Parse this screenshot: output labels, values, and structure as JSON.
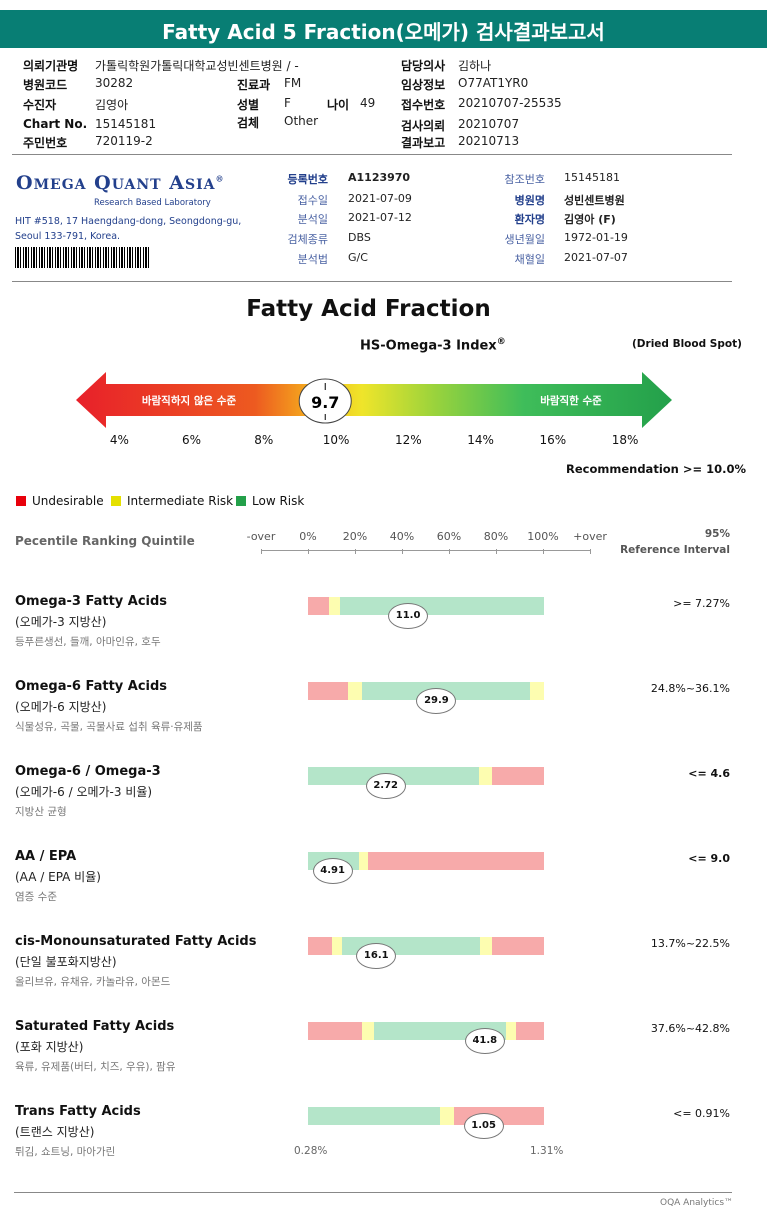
{
  "report": {
    "title": "Fatty Acid 5 Fraction(오메가) 검사결과보고서"
  },
  "header": {
    "left": [
      {
        "k": "의뢰기관명",
        "v": "가톨릭학원가톨릭대학교성빈센트병원 / -"
      },
      {
        "k": "병원코드",
        "v": "30282"
      },
      {
        "k": "수진자",
        "v": "김영아"
      },
      {
        "k": "Chart No.",
        "v": "15145181"
      },
      {
        "k": "주민번호",
        "v": "720119-2"
      }
    ],
    "mid": [
      {
        "k": "진료과",
        "v": "FM"
      },
      {
        "k": "성별",
        "v": "F"
      },
      {
        "k": "검체",
        "v": "Other"
      }
    ],
    "age": {
      "k": "나이",
      "v": "49"
    },
    "right": [
      {
        "k": "담당의사",
        "v": "김하나"
      },
      {
        "k": "임상정보",
        "v": "O77AT1YR0"
      },
      {
        "k": "접수번호",
        "v": "20210707-25535"
      },
      {
        "k": "검사의뢰",
        "v": "20210707"
      },
      {
        "k": "결과보고",
        "v": "20210713"
      }
    ]
  },
  "lab": {
    "name": "Omega Quant Asia",
    "subtitle": "Research Based Laboratory",
    "address_1": "HIT #518, 17 Haengdang-dong, Seongdong-gu,",
    "address_2": "Seoul 133-791, Korea."
  },
  "info": [
    {
      "k": "등록번호",
      "v": "A1123970",
      "kb": true,
      "vb": true
    },
    {
      "k": "접수일",
      "v": "2021-07-09"
    },
    {
      "k": "분석일",
      "v": "2021-07-12"
    },
    {
      "k": "검체종류",
      "v": "DBS"
    },
    {
      "k": "분석법",
      "v": "G/C"
    }
  ],
  "info2": [
    {
      "k": "참조번호",
      "v": "15145181"
    },
    {
      "k": "병원명",
      "v": "성빈센트병원",
      "kb": true,
      "vb": true
    },
    {
      "k": "환자명",
      "v": "김영아 (F)",
      "kb": true,
      "vb": true
    },
    {
      "k": "생년월일",
      "v": "1972-01-19"
    },
    {
      "k": "채혈일",
      "v": "2021-07-07"
    }
  ],
  "index": {
    "title": "Fatty Acid Fraction",
    "name": "HS-Omega-3 Index",
    "reg": "®",
    "sample": "(Dried Blood Spot)",
    "value": "9.7",
    "value_num": 9.7,
    "axis_min": 2.8,
    "axis_max": 19.3,
    "left_label": "바람직하지 않은 수준",
    "right_label": "바람직한 수준",
    "ticks": [
      "4%",
      "6%",
      "8%",
      "10%",
      "12%",
      "14%",
      "16%",
      "18%"
    ],
    "tick_values": [
      4,
      6,
      8,
      10,
      12,
      14,
      16,
      18
    ],
    "recommendation": "Recommendation  >= 10.0%"
  },
  "legend": [
    {
      "label": "Undesirable",
      "color": "#e8000b"
    },
    {
      "label": "Intermediate Risk",
      "color": "#e5e000"
    },
    {
      "label": "Low Risk",
      "color": "#23a04a"
    }
  ],
  "quintile": {
    "label": "Pecentile Ranking Quintile",
    "ticks": [
      "-over",
      "0%",
      "20%",
      "40%",
      "60%",
      "80%",
      "100%",
      "+over"
    ],
    "ref_1": "95%",
    "ref_2": "Reference Interval"
  },
  "colors": {
    "red": "#f7aaaa",
    "yellow": "#fdfdb0",
    "green": "#b4e5c9",
    "teal": "#087e74"
  },
  "results": [
    {
      "name": "Omega-3 Fatty Acids",
      "sub": "(오메가-3 지방산)",
      "desc": "등푸른생선, 들깨, 아마인유, 호두",
      "value": "11.0",
      "pos": 0.42,
      "ref": ">= 7.27%",
      "ref_bold": false,
      "zones": [
        [
          "r",
          0,
          0.09
        ],
        [
          "y",
          0.09,
          0.135
        ],
        [
          "g",
          0.135,
          1
        ]
      ]
    },
    {
      "name": "Omega-6 Fatty Acids",
      "sub": "(오메가-6 지방산)",
      "desc": "식물성유, 곡물, 곡물사료 섭취 육류·유제품",
      "value": "29.9",
      "pos": 0.54,
      "ref": "24.8%~36.1%",
      "ref_bold": false,
      "zones": [
        [
          "r",
          0,
          0.17
        ],
        [
          "y",
          0.17,
          0.23
        ],
        [
          "g",
          0.23,
          0.94
        ],
        [
          "y",
          0.94,
          1
        ]
      ]
    },
    {
      "name": "Omega-6 / Omega-3",
      "sub": "(오메가-6 / 오메가-3 비율)",
      "desc": "지방산 균형",
      "value": "2.72",
      "pos": 0.325,
      "ref": "<= 4.6",
      "ref_bold": true,
      "zones": [
        [
          "g",
          0,
          0.725
        ],
        [
          "y",
          0.725,
          0.78
        ],
        [
          "r",
          0.78,
          1
        ]
      ]
    },
    {
      "name": "AA / EPA",
      "sub": "(AA / EPA 비율)",
      "desc": "염증 수준",
      "value": "4.91",
      "pos": 0.1,
      "ref": "<= 9.0",
      "ref_bold": true,
      "zones": [
        [
          "g",
          0,
          0.215
        ],
        [
          "y",
          0.215,
          0.255
        ],
        [
          "r",
          0.255,
          1
        ]
      ]
    },
    {
      "name": "cis-Monounsaturated Fatty Acids",
      "sub": "(단일 불포화지방산)",
      "desc": "올리브유, 유채유, 카놀라유, 아몬드",
      "value": "16.1",
      "pos": 0.285,
      "ref": "13.7%~22.5%",
      "ref_bold": false,
      "zones": [
        [
          "r",
          0,
          0.1
        ],
        [
          "y",
          0.1,
          0.145
        ],
        [
          "g",
          0.145,
          0.73
        ],
        [
          "y",
          0.73,
          0.78
        ],
        [
          "r",
          0.78,
          1
        ]
      ]
    },
    {
      "name": "Saturated Fatty Acids",
      "sub": "(포화 지방산)",
      "desc": "육류, 유제품(버터, 치즈, 우유), 팜유",
      "value": "41.8",
      "pos": 0.745,
      "ref": "37.6%~42.8%",
      "ref_bold": false,
      "zones": [
        [
          "r",
          0,
          0.23
        ],
        [
          "y",
          0.23,
          0.28
        ],
        [
          "g",
          0.28,
          0.84
        ],
        [
          "y",
          0.84,
          0.88
        ],
        [
          "r",
          0.88,
          1
        ]
      ]
    },
    {
      "name": "Trans Fatty Acids",
      "sub": "(트랜스 지방산)",
      "desc": "튀김, 쇼트닝, 마아가린",
      "value": "1.05",
      "pos": 0.74,
      "ref": "<= 0.91%",
      "ref_bold": false,
      "zones": [
        [
          "g",
          0,
          0.56
        ],
        [
          "y",
          0.56,
          0.62
        ],
        [
          "r",
          0.62,
          1
        ]
      ],
      "edge_min": "0.28%",
      "edge_max": "1.31%"
    }
  ],
  "footer": "OQA Analytics™"
}
